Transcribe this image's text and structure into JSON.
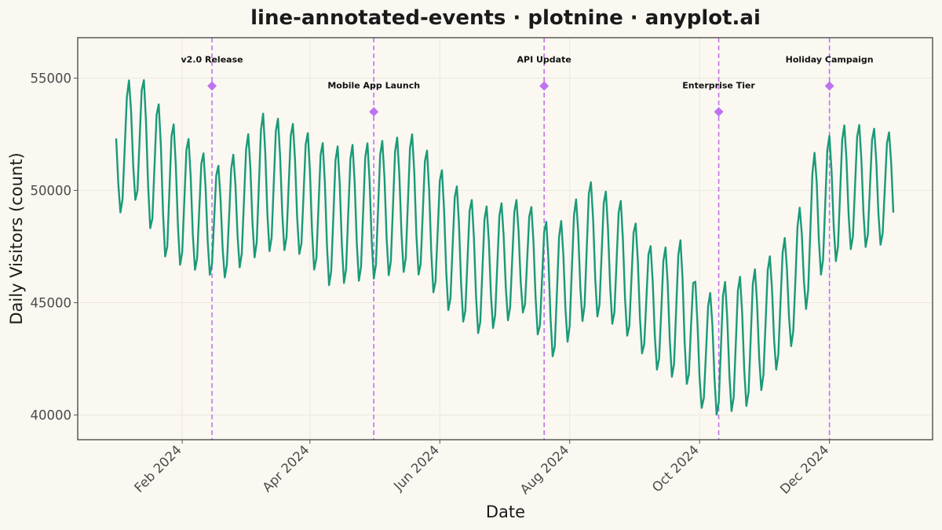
{
  "chart_data": {
    "type": "line",
    "title": "line-annotated-events · plotnine · anyplot.ai",
    "xlabel": "Date",
    "ylabel": "Daily Visitors (count)",
    "x_range": [
      "2024-01-01",
      "2024-12-31"
    ],
    "ylim": [
      38900,
      56800
    ],
    "yticks": [
      40000,
      45000,
      50000,
      55000
    ],
    "xticks": [
      {
        "date": "2024-02-01",
        "label": "Feb 2024"
      },
      {
        "date": "2024-04-01",
        "label": "Apr 2024"
      },
      {
        "date": "2024-06-01",
        "label": "Jun 2024"
      },
      {
        "date": "2024-08-01",
        "label": "Aug 2024"
      },
      {
        "date": "2024-10-01",
        "label": "Oct 2024"
      },
      {
        "date": "2024-12-01",
        "label": "Dec 2024"
      }
    ],
    "grid": true,
    "line_color": "#1A9A78",
    "event_color": "#BF72F0",
    "series": [
      {
        "x_start": "2024-01-01",
        "x_step_days": 1,
        "weekly_oscillation": true,
        "trend_anchors": [
          {
            "date": "2024-01-01",
            "high": 53700,
            "low": 48800
          },
          {
            "date": "2024-01-10",
            "high": 55600,
            "low": 49500
          },
          {
            "date": "2024-01-25",
            "high": 53300,
            "low": 46800
          },
          {
            "date": "2024-02-10",
            "high": 51800,
            "low": 46300
          },
          {
            "date": "2024-02-20",
            "high": 51000,
            "low": 46000
          },
          {
            "date": "2024-03-10",
            "high": 53500,
            "low": 47200
          },
          {
            "date": "2024-03-25",
            "high": 53000,
            "low": 47300
          },
          {
            "date": "2024-04-10",
            "high": 52000,
            "low": 45700
          },
          {
            "date": "2024-05-01",
            "high": 52200,
            "low": 46000
          },
          {
            "date": "2024-05-20",
            "high": 52600,
            "low": 46400
          },
          {
            "date": "2024-06-05",
            "high": 50600,
            "low": 44600
          },
          {
            "date": "2024-06-20",
            "high": 49300,
            "low": 43500
          },
          {
            "date": "2024-07-10",
            "high": 49700,
            "low": 44500
          },
          {
            "date": "2024-07-25",
            "high": 48300,
            "low": 42400
          },
          {
            "date": "2024-08-10",
            "high": 50500,
            "low": 44500
          },
          {
            "date": "2024-08-25",
            "high": 49600,
            "low": 43800
          },
          {
            "date": "2024-09-10",
            "high": 47300,
            "low": 42000
          },
          {
            "date": "2024-09-25",
            "high": 48000,
            "low": 41300
          },
          {
            "date": "2024-10-01",
            "high": 45000,
            "low": 40300
          },
          {
            "date": "2024-10-10",
            "high": 45900,
            "low": 39900
          },
          {
            "date": "2024-10-25",
            "high": 46400,
            "low": 40400
          },
          {
            "date": "2024-11-05",
            "high": 47300,
            "low": 41800
          },
          {
            "date": "2024-11-15",
            "high": 48600,
            "low": 43300
          },
          {
            "date": "2024-11-25",
            "high": 52100,
            "low": 46000
          },
          {
            "date": "2024-12-10",
            "high": 53100,
            "low": 47300
          },
          {
            "date": "2024-12-31",
            "high": 52600,
            "low": 47600
          }
        ]
      }
    ],
    "events": [
      {
        "date": "2024-02-15",
        "label": "v2.0 Release",
        "marker_y": 54650,
        "tier": "upper"
      },
      {
        "date": "2024-05-01",
        "label": "Mobile App Launch",
        "marker_y": 53500,
        "tier": "lower"
      },
      {
        "date": "2024-07-20",
        "label": "API Update",
        "marker_y": 54650,
        "tier": "upper"
      },
      {
        "date": "2024-10-10",
        "label": "Enterprise Tier",
        "marker_y": 53500,
        "tier": "lower"
      },
      {
        "date": "2024-12-01",
        "label": "Holiday Campaign",
        "marker_y": 54650,
        "tier": "upper"
      }
    ]
  }
}
